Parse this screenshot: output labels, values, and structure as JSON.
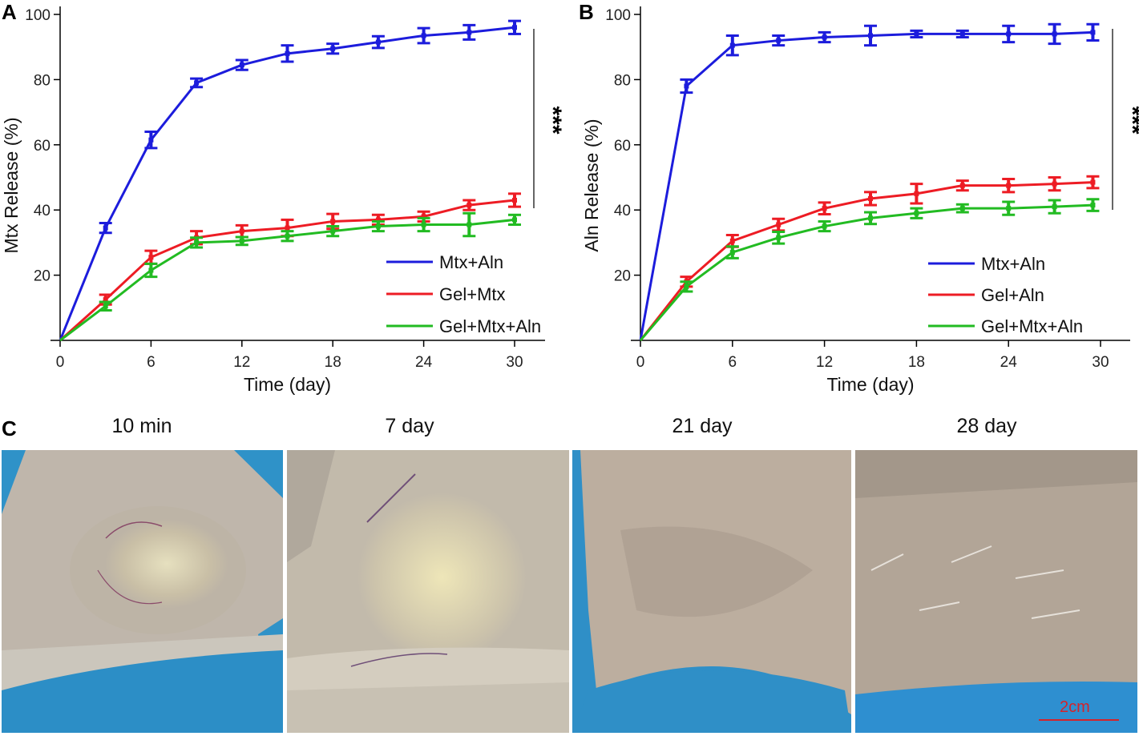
{
  "chart_data": [
    {
      "panel": "A",
      "type": "line",
      "xlabel": "Time (day)",
      "ylabel": "Mtx Release (%)",
      "xlim": [
        0,
        31
      ],
      "ylim": [
        0,
        100
      ],
      "xticks": [
        0,
        6,
        12,
        18,
        24,
        30
      ],
      "yticks": [
        20,
        40,
        60,
        80,
        100
      ],
      "significance": "***",
      "series": [
        {
          "name": "Mtx+Aln",
          "color": "#1c1cdc",
          "x": [
            0,
            3,
            6,
            9,
            12,
            15,
            18,
            21,
            24,
            27,
            30
          ],
          "y": [
            0,
            34.5,
            61.5,
            79,
            84.5,
            88,
            89.5,
            91.5,
            93.5,
            94.5,
            96
          ],
          "err": [
            0,
            1.5,
            2.5,
            1.3,
            1.5,
            2.5,
            1.5,
            1.8,
            2.3,
            2.2,
            2.0
          ]
        },
        {
          "name": "Gel+Mtx",
          "color": "#ed1c24",
          "x": [
            0,
            3,
            6,
            9,
            12,
            15,
            18,
            21,
            24,
            27,
            30
          ],
          "y": [
            0,
            12.5,
            25.5,
            31.5,
            33.5,
            34.5,
            36.5,
            37,
            38,
            41.5,
            43
          ],
          "err": [
            0,
            1.5,
            2.0,
            2.0,
            1.8,
            2.5,
            2.3,
            1.5,
            1.5,
            1.5,
            2.0
          ]
        },
        {
          "name": "Gel+Mtx+Aln",
          "color": "#22bb22",
          "x": [
            0,
            3,
            6,
            9,
            12,
            15,
            18,
            21,
            24,
            27,
            30
          ],
          "y": [
            0,
            10.5,
            21.5,
            30,
            30.5,
            32,
            33.5,
            35,
            35.5,
            35.5,
            37
          ],
          "err": [
            0,
            1.3,
            2.0,
            1.5,
            1.2,
            1.5,
            1.5,
            1.5,
            2.0,
            3.5,
            1.5
          ]
        }
      ]
    },
    {
      "panel": "B",
      "type": "line",
      "xlabel": "Time (day)",
      "ylabel": "Aln Release (%)",
      "xlim": [
        0,
        31
      ],
      "ylim": [
        0,
        100
      ],
      "xticks": [
        0,
        6,
        12,
        18,
        24,
        30
      ],
      "yticks": [
        20,
        40,
        60,
        80,
        100
      ],
      "significance": "***",
      "series": [
        {
          "name": "Mtx+Aln",
          "color": "#1c1cdc",
          "x": [
            0,
            3,
            6,
            9,
            12,
            15,
            18,
            21,
            24,
            27,
            29.5
          ],
          "y": [
            0,
            78,
            90.5,
            92,
            93,
            93.5,
            94,
            94,
            94,
            94,
            94.5
          ],
          "err": [
            0,
            2.0,
            3.0,
            1.5,
            1.5,
            3.0,
            1.0,
            1.0,
            2.5,
            3.0,
            2.5
          ]
        },
        {
          "name": "Gel+Aln",
          "color": "#ed1c24",
          "x": [
            0,
            3,
            6,
            9,
            12,
            15,
            18,
            21,
            24,
            27,
            29.5
          ],
          "y": [
            0,
            18,
            30.5,
            35.5,
            40.5,
            43.5,
            45,
            47.5,
            47.5,
            48,
            48.5
          ],
          "err": [
            0,
            1.5,
            1.8,
            1.8,
            1.8,
            2.0,
            3.0,
            1.5,
            2.0,
            2.0,
            1.8
          ]
        },
        {
          "name": "Gel+Mtx+Aln",
          "color": "#22bb22",
          "x": [
            0,
            3,
            6,
            9,
            12,
            15,
            18,
            21,
            24,
            27,
            29.5
          ],
          "y": [
            0,
            16.5,
            27,
            31.5,
            35,
            37.5,
            39,
            40.5,
            40.5,
            41,
            41.5
          ],
          "err": [
            0,
            1.5,
            1.8,
            1.8,
            1.5,
            1.8,
            1.5,
            1.2,
            2.0,
            2.0,
            1.8
          ]
        }
      ]
    }
  ],
  "panel_c": {
    "letter": "C",
    "images": [
      {
        "label": "10 min"
      },
      {
        "label": "7 day"
      },
      {
        "label": "21 day"
      },
      {
        "label": "28 day"
      }
    ],
    "scale_bar": "2cm"
  }
}
